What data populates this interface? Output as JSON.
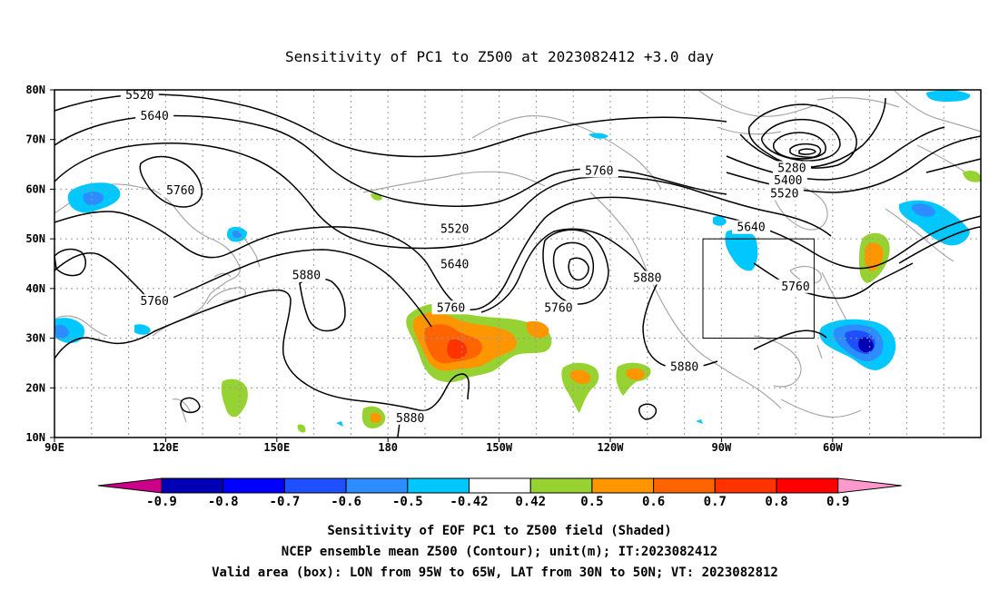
{
  "title": "Sensitivity of PC1 to Z500 at 2023082412 +3.0 day",
  "lat_labels": [
    "80N",
    "70N",
    "60N",
    "50N",
    "40N",
    "30N",
    "20N",
    "10N"
  ],
  "lon_labels": [
    "90E",
    "120E",
    "150E",
    "180",
    "150W",
    "120W",
    "90W",
    "60W"
  ],
  "contour_labels": [
    {
      "text": "5520",
      "lon": 113,
      "lat": 78.7
    },
    {
      "text": "5640",
      "lon": 117,
      "lat": 74.5
    },
    {
      "text": "5760",
      "lon": 124,
      "lat": 59.5
    },
    {
      "text": "5760",
      "lon": 117,
      "lat": 37.2
    },
    {
      "text": "5880",
      "lon": 158,
      "lat": 42.4
    },
    {
      "text": "5520",
      "lon": 198,
      "lat": 51.8
    },
    {
      "text": "5640",
      "lon": 198,
      "lat": 44.6
    },
    {
      "text": "5760",
      "lon": 197,
      "lat": 35.9
    },
    {
      "text": "5760",
      "lon": 237,
      "lat": 63.5
    },
    {
      "text": "5760",
      "lon": 226,
      "lat": 35.9
    },
    {
      "text": "5880",
      "lon": 250,
      "lat": 41.9
    },
    {
      "text": "5880",
      "lon": 260,
      "lat": 24.0
    },
    {
      "text": "5880",
      "lon": 186,
      "lat": 13.7
    },
    {
      "text": "5280",
      "lon": 289,
      "lat": 64.0
    },
    {
      "text": "5400",
      "lon": 288,
      "lat": 61.5
    },
    {
      "text": "5520",
      "lon": 287,
      "lat": 58.9
    },
    {
      "text": "5640",
      "lon": 278,
      "lat": 52.1
    },
    {
      "text": "5760",
      "lon": 290,
      "lat": 40.2
    }
  ],
  "colorbar": {
    "labels": [
      "-0.9",
      "-0.8",
      "-0.7",
      "-0.6",
      "-0.5",
      "-0.42",
      "0.42",
      "0.5",
      "0.6",
      "0.7",
      "0.8",
      "0.9"
    ],
    "colors": [
      "#0000b4",
      "#0000ff",
      "#1e50ff",
      "#2d8cff",
      "#00c8ff",
      "#ffffff",
      "#96d232",
      "#ff9600",
      "#ff6400",
      "#ff3200",
      "#ff0000"
    ],
    "low_color": "#cc0088",
    "high_color": "#ff99cc"
  },
  "caption_lines": [
    "Sensitivity of EOF PC1 to Z500 field (Shaded)",
    "NCEP ensemble mean Z500 (Contour); unit(m); IT:2023082412",
    "Valid area (box): LON from 95W to 65W, LAT from 30N to 50N; VT: 2023082812"
  ],
  "valid_box": {
    "lon_min": -95,
    "lon_max": -65,
    "lat_min": 30,
    "lat_max": 50
  }
}
